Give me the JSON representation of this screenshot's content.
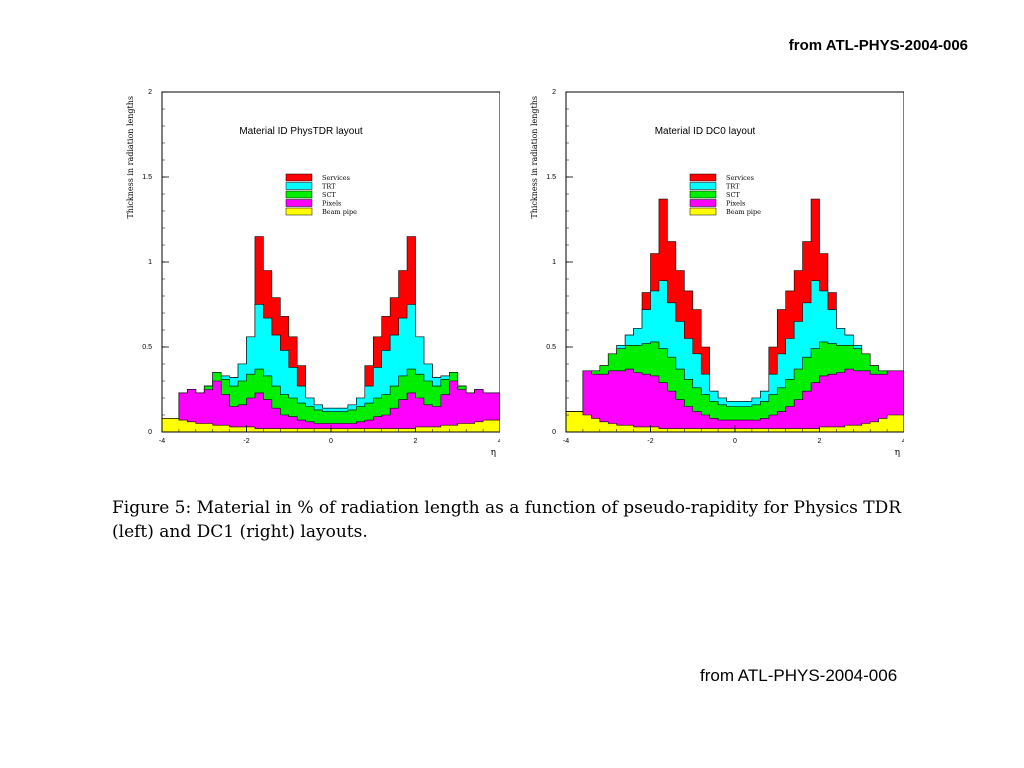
{
  "header_ref": "from ATL-PHYS-2004-006",
  "footer_ref": "from ATL-PHYS-2004-006",
  "caption": {
    "line1": "Figure 5: Material in % of radiation length as a function of pseudo-rapidity for Physics TDR",
    "line2": "(left) and DC1 (right) layouts."
  },
  "chart_data": [
    {
      "type": "area",
      "title": "Material ID PhysTDR layout",
      "xlabel": "η",
      "ylabel": "Thickness in radiation lengths",
      "xlim": [
        -4,
        4
      ],
      "ylim": [
        0,
        2
      ],
      "xticks": [
        "-4",
        "-2",
        "0",
        "2",
        "4"
      ],
      "yticks": [
        "0",
        "0.5",
        "1",
        "1.5",
        "2"
      ],
      "stacked": true,
      "legend_position": "top-center",
      "legend_labels": [
        "Services",
        "TRT",
        "SCT",
        "Pixels",
        "Beam pipe"
      ],
      "colors": [
        "#ff0000",
        "#00ffff",
        "#00ee00",
        "#ff00ff",
        "#ffff00"
      ],
      "x": [
        -4.0,
        -3.6,
        -3.4,
        -3.2,
        -3.0,
        -2.8,
        -2.6,
        -2.4,
        -2.2,
        -2.0,
        -1.8,
        -1.6,
        -1.4,
        -1.2,
        -1.0,
        -0.8,
        -0.6,
        -0.4,
        -0.2,
        0.0,
        0.2,
        0.4,
        0.6,
        0.8,
        1.0,
        1.2,
        1.4,
        1.6,
        1.8,
        2.0,
        2.2,
        2.4,
        2.6,
        2.8,
        3.0,
        3.2,
        3.4,
        3.6,
        4.0
      ],
      "series": [
        {
          "name": "Beam pipe",
          "values": [
            0.08,
            0.07,
            0.06,
            0.05,
            0.05,
            0.04,
            0.04,
            0.03,
            0.03,
            0.03,
            0.02,
            0.02,
            0.02,
            0.02,
            0.02,
            0.02,
            0.02,
            0.02,
            0.02,
            0.02,
            0.02,
            0.02,
            0.02,
            0.02,
            0.02,
            0.02,
            0.02,
            0.02,
            0.02,
            0.03,
            0.03,
            0.03,
            0.04,
            0.04,
            0.05,
            0.05,
            0.06,
            0.07,
            0.08
          ]
        },
        {
          "name": "Pixels",
          "values": [
            0.0,
            0.16,
            0.19,
            0.18,
            0.2,
            0.26,
            0.18,
            0.12,
            0.13,
            0.17,
            0.21,
            0.17,
            0.12,
            0.08,
            0.07,
            0.05,
            0.04,
            0.03,
            0.03,
            0.03,
            0.03,
            0.03,
            0.04,
            0.05,
            0.07,
            0.08,
            0.12,
            0.17,
            0.21,
            0.17,
            0.13,
            0.12,
            0.18,
            0.26,
            0.2,
            0.18,
            0.19,
            0.16,
            0.0
          ]
        },
        {
          "name": "SCT",
          "values": [
            0.0,
            0.0,
            0.0,
            0.0,
            0.02,
            0.05,
            0.09,
            0.12,
            0.14,
            0.14,
            0.14,
            0.14,
            0.13,
            0.12,
            0.11,
            0.1,
            0.09,
            0.08,
            0.07,
            0.07,
            0.07,
            0.08,
            0.09,
            0.1,
            0.11,
            0.12,
            0.13,
            0.14,
            0.14,
            0.14,
            0.14,
            0.12,
            0.09,
            0.05,
            0.02,
            0.0,
            0.0,
            0.0,
            0.0
          ]
        },
        {
          "name": "TRT",
          "values": [
            0.0,
            0.0,
            0.0,
            0.0,
            0.0,
            0.0,
            0.02,
            0.05,
            0.1,
            0.22,
            0.38,
            0.34,
            0.3,
            0.26,
            0.18,
            0.1,
            0.05,
            0.03,
            0.02,
            0.02,
            0.02,
            0.03,
            0.05,
            0.1,
            0.18,
            0.26,
            0.3,
            0.34,
            0.38,
            0.22,
            0.1,
            0.05,
            0.02,
            0.0,
            0.0,
            0.0,
            0.0,
            0.0,
            0.0
          ]
        },
        {
          "name": "Services",
          "values": [
            0.0,
            0.0,
            0.0,
            0.0,
            0.0,
            0.0,
            0.0,
            0.0,
            0.0,
            0.0,
            0.4,
            0.28,
            0.22,
            0.2,
            0.18,
            0.12,
            0.0,
            0.0,
            0.0,
            0.0,
            0.0,
            0.0,
            0.0,
            0.12,
            0.18,
            0.2,
            0.22,
            0.28,
            0.4,
            0.0,
            0.0,
            0.0,
            0.0,
            0.0,
            0.0,
            0.0,
            0.0,
            0.0,
            0.0
          ]
        }
      ]
    },
    {
      "type": "area",
      "title": "Material ID DC0 layout",
      "xlabel": "η",
      "ylabel": "Thickness in radiation lengths",
      "xlim": [
        -4,
        4
      ],
      "ylim": [
        0,
        2
      ],
      "xticks": [
        "-4",
        "-2",
        "0",
        "2",
        "4"
      ],
      "yticks": [
        "0",
        "0.5",
        "1",
        "1.5",
        "2"
      ],
      "stacked": true,
      "legend_position": "top-center",
      "legend_labels": [
        "Services",
        "TRT",
        "SCT",
        "Pixels",
        "Beam pipe"
      ],
      "colors": [
        "#ff0000",
        "#00ffff",
        "#00ee00",
        "#ff00ff",
        "#ffff00"
      ],
      "x": [
        -4.0,
        -3.6,
        -3.4,
        -3.2,
        -3.0,
        -2.8,
        -2.6,
        -2.4,
        -2.2,
        -2.0,
        -1.8,
        -1.6,
        -1.4,
        -1.2,
        -1.0,
        -0.8,
        -0.6,
        -0.4,
        -0.2,
        0.0,
        0.2,
        0.4,
        0.6,
        0.8,
        1.0,
        1.2,
        1.4,
        1.6,
        1.8,
        2.0,
        2.2,
        2.4,
        2.6,
        2.8,
        3.0,
        3.2,
        3.4,
        3.6,
        4.0
      ],
      "series": [
        {
          "name": "Beam pipe",
          "values": [
            0.12,
            0.1,
            0.08,
            0.06,
            0.05,
            0.04,
            0.04,
            0.03,
            0.03,
            0.03,
            0.02,
            0.02,
            0.02,
            0.02,
            0.02,
            0.02,
            0.02,
            0.02,
            0.02,
            0.02,
            0.02,
            0.02,
            0.02,
            0.02,
            0.02,
            0.02,
            0.02,
            0.02,
            0.02,
            0.03,
            0.03,
            0.03,
            0.04,
            0.04,
            0.05,
            0.06,
            0.08,
            0.1,
            0.12
          ]
        },
        {
          "name": "Pixels",
          "values": [
            0.0,
            0.26,
            0.26,
            0.28,
            0.31,
            0.32,
            0.33,
            0.32,
            0.31,
            0.3,
            0.27,
            0.22,
            0.17,
            0.13,
            0.1,
            0.08,
            0.06,
            0.05,
            0.05,
            0.05,
            0.05,
            0.05,
            0.06,
            0.08,
            0.1,
            0.13,
            0.17,
            0.22,
            0.27,
            0.3,
            0.31,
            0.32,
            0.33,
            0.32,
            0.31,
            0.28,
            0.26,
            0.26,
            0.0
          ]
        },
        {
          "name": "SCT",
          "values": [
            0.0,
            0.0,
            0.02,
            0.05,
            0.1,
            0.13,
            0.14,
            0.16,
            0.18,
            0.2,
            0.2,
            0.2,
            0.18,
            0.16,
            0.14,
            0.12,
            0.1,
            0.09,
            0.08,
            0.08,
            0.08,
            0.09,
            0.1,
            0.12,
            0.14,
            0.16,
            0.18,
            0.2,
            0.2,
            0.2,
            0.18,
            0.16,
            0.14,
            0.13,
            0.1,
            0.05,
            0.02,
            0.0,
            0.0
          ]
        },
        {
          "name": "TRT",
          "values": [
            0.0,
            0.0,
            0.0,
            0.0,
            0.0,
            0.02,
            0.06,
            0.1,
            0.2,
            0.3,
            0.4,
            0.32,
            0.28,
            0.24,
            0.2,
            0.12,
            0.06,
            0.04,
            0.03,
            0.03,
            0.03,
            0.04,
            0.06,
            0.12,
            0.2,
            0.24,
            0.28,
            0.32,
            0.4,
            0.3,
            0.2,
            0.1,
            0.06,
            0.02,
            0.0,
            0.0,
            0.0,
            0.0,
            0.0
          ]
        },
        {
          "name": "Services",
          "values": [
            0.0,
            0.0,
            0.0,
            0.0,
            0.0,
            0.0,
            0.0,
            0.0,
            0.1,
            0.22,
            0.48,
            0.36,
            0.3,
            0.28,
            0.26,
            0.16,
            0.0,
            0.0,
            0.0,
            0.0,
            0.0,
            0.0,
            0.0,
            0.16,
            0.26,
            0.28,
            0.3,
            0.36,
            0.48,
            0.22,
            0.1,
            0.0,
            0.0,
            0.0,
            0.0,
            0.0,
            0.0,
            0.0,
            0.0
          ]
        }
      ]
    }
  ]
}
